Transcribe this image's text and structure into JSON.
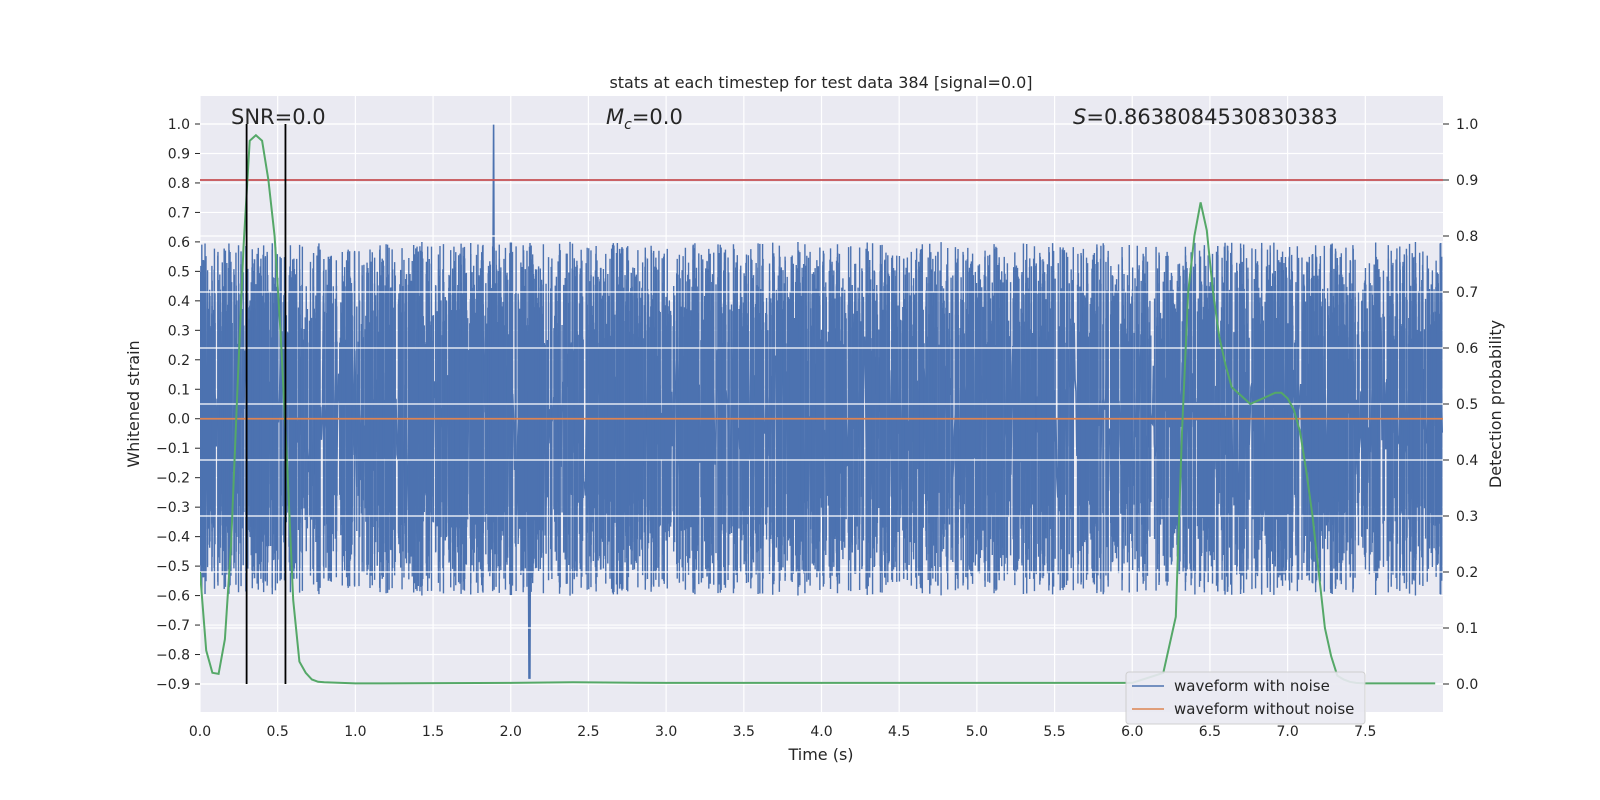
{
  "chart_data": {
    "type": "line",
    "title": "stats at each timestep for test data 384 [signal=0.0]",
    "xlabel": "Time (s)",
    "ylabel": "Whitened strain",
    "y2label": "Detection probability",
    "xlim": [
      0.0,
      8.0
    ],
    "ylim": [
      -1.0,
      1.1
    ],
    "y2lim": [
      -0.05,
      1.05
    ],
    "x_ticks": [
      "0.0",
      "0.5",
      "1.0",
      "1.5",
      "2.0",
      "2.5",
      "3.0",
      "3.5",
      "4.0",
      "4.5",
      "5.0",
      "5.5",
      "6.0",
      "6.5",
      "7.0",
      "7.5"
    ],
    "y_ticks": [
      "-0.9",
      "-0.8",
      "-0.7",
      "-0.6",
      "-0.5",
      "-0.4",
      "-0.3",
      "-0.2",
      "-0.1",
      "0.0",
      "0.1",
      "0.2",
      "0.3",
      "0.4",
      "0.5",
      "0.6",
      "0.7",
      "0.8",
      "0.9",
      "1.0"
    ],
    "y2_ticks": [
      "0.0",
      "0.1",
      "0.2",
      "0.3",
      "0.4",
      "0.5",
      "0.6",
      "0.7",
      "0.8",
      "0.9",
      "1.0"
    ],
    "grid": true,
    "legend_position": "lower-right",
    "annotations": {
      "snr": "SNR=0.0",
      "mc_symbol": "M",
      "mc_sub": "c",
      "mc_value": "=0.0",
      "s_symbol": "S",
      "s_value": "=0.8638084530830383"
    },
    "threshold_y2": 0.9,
    "vertical_lines_x": [
      0.3,
      0.55
    ],
    "series": [
      {
        "name": "waveform with noise",
        "color": "#4c72b0",
        "kind": "noise",
        "amplitude_typical": 0.5,
        "peak": 1.0,
        "peak_x": 1.89,
        "min": -0.88,
        "min_x": 2.12
      },
      {
        "name": "waveform without noise",
        "color": "#dd8452",
        "kind": "flat",
        "value": 0.0
      },
      {
        "color": "#55a868",
        "axis": "right",
        "x": [
          0.0,
          0.04,
          0.08,
          0.12,
          0.16,
          0.2,
          0.24,
          0.28,
          0.32,
          0.36,
          0.4,
          0.44,
          0.48,
          0.52,
          0.56,
          0.6,
          0.64,
          0.68,
          0.72,
          0.76,
          0.8,
          1.0,
          2.0,
          2.4,
          3.0,
          4.0,
          5.0,
          6.0,
          6.2,
          6.28,
          6.32,
          6.36,
          6.4,
          6.44,
          6.48,
          6.52,
          6.56,
          6.6,
          6.64,
          6.68,
          6.72,
          6.76,
          6.8,
          6.84,
          6.88,
          6.92,
          6.96,
          7.0,
          7.04,
          7.08,
          7.12,
          7.16,
          7.2,
          7.24,
          7.28,
          7.32,
          7.36,
          7.4,
          7.44,
          7.5,
          7.6,
          7.7,
          7.8,
          7.95
        ],
        "y": [
          0.2,
          0.06,
          0.02,
          0.018,
          0.08,
          0.25,
          0.52,
          0.78,
          0.97,
          0.98,
          0.97,
          0.9,
          0.8,
          0.62,
          0.4,
          0.15,
          0.04,
          0.02,
          0.008,
          0.004,
          0.003,
          0.001,
          0.002,
          0.003,
          0.002,
          0.002,
          0.002,
          0.002,
          0.02,
          0.12,
          0.45,
          0.7,
          0.8,
          0.86,
          0.81,
          0.7,
          0.62,
          0.57,
          0.53,
          0.52,
          0.51,
          0.5,
          0.505,
          0.51,
          0.515,
          0.52,
          0.52,
          0.51,
          0.49,
          0.45,
          0.38,
          0.3,
          0.2,
          0.1,
          0.05,
          0.015,
          0.008,
          0.004,
          0.002,
          0.001,
          0.001,
          0.001,
          0.001,
          0.001
        ]
      }
    ]
  }
}
